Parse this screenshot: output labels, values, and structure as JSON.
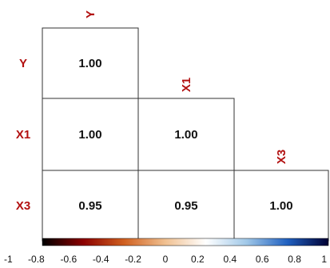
{
  "chart_data": {
    "type": "heatmap",
    "variables": [
      "Y",
      "X1",
      "X3"
    ],
    "cells": [
      {
        "row": "Y",
        "col": "Y",
        "value": 1.0,
        "label": "1.00"
      },
      {
        "row": "X1",
        "col": "Y",
        "value": 1.0,
        "label": "1.00"
      },
      {
        "row": "X1",
        "col": "X1",
        "value": 1.0,
        "label": "1.00"
      },
      {
        "row": "X3",
        "col": "Y",
        "value": 0.95,
        "label": "0.95"
      },
      {
        "row": "X3",
        "col": "X1",
        "value": 0.95,
        "label": "0.95"
      },
      {
        "row": "X3",
        "col": "X3",
        "value": 1.0,
        "label": "1.00"
      }
    ],
    "colorbar": {
      "range": [
        -1,
        1
      ],
      "ticks": [
        "-1",
        "-0.8",
        "-0.6",
        "-0.4",
        "-0.2",
        "0",
        "0.2",
        "0.4",
        "0.6",
        "0.8",
        "1"
      ],
      "colors": [
        "#000000",
        "#8b0000",
        "#d06020",
        "#f0c090",
        "#ffffff",
        "#a0c8e8",
        "#2060c0",
        "#000033"
      ]
    },
    "colors": {
      "label": "#b21010",
      "value_text": "#111111",
      "cell_fill": "#ffffff",
      "cell_border": "#333333"
    }
  }
}
